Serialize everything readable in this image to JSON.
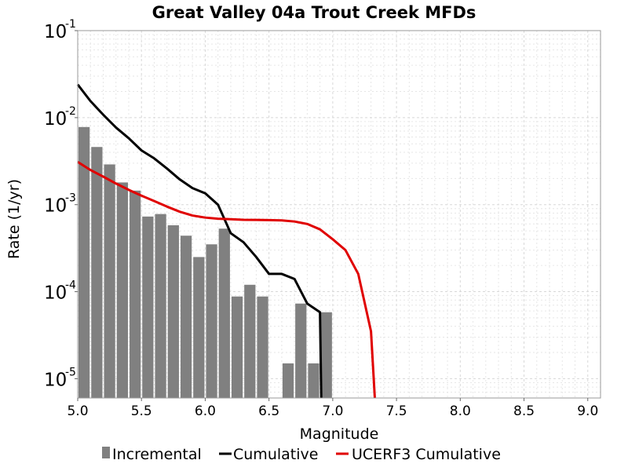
{
  "chart_data": {
    "type": "bar+line",
    "title": "Great Valley 04a Trout Creek MFDs",
    "xlabel": "Magnitude",
    "ylabel": "Rate (1/yr)",
    "xlim": [
      5.0,
      9.1
    ],
    "ylim": [
      6e-06,
      0.1
    ],
    "yscale": "log",
    "x_ticks": [
      "5.0",
      "5.5",
      "6.0",
      "6.5",
      "7.0",
      "7.5",
      "8.0",
      "8.5",
      "9.0"
    ],
    "y_ticks": [
      {
        "base": "10",
        "exp": "-5",
        "value": 1e-05
      },
      {
        "base": "10",
        "exp": "-4",
        "value": 0.0001
      },
      {
        "base": "10",
        "exp": "-3",
        "value": 0.001
      },
      {
        "base": "10",
        "exp": "-2",
        "value": 0.01
      },
      {
        "base": "10",
        "exp": "-1",
        "value": 0.1
      }
    ],
    "grid": true,
    "legend_position": "bottom",
    "series": [
      {
        "name": "Incremental",
        "kind": "bar",
        "color": "#808080",
        "bar_width": 0.1,
        "x": [
          5.05,
          5.15,
          5.25,
          5.35,
          5.45,
          5.55,
          5.65,
          5.75,
          5.85,
          5.95,
          6.05,
          6.15,
          6.25,
          6.35,
          6.45,
          6.55,
          6.65,
          6.75,
          6.85,
          6.95
        ],
        "y": [
          0.0078,
          0.0046,
          0.0029,
          0.0018,
          0.00145,
          0.00073,
          0.00078,
          0.00058,
          0.00044,
          0.00025,
          0.00035,
          0.00053,
          8.8e-05,
          0.00012,
          8.8e-05,
          0,
          1.5e-05,
          7.3e-05,
          1.5e-05,
          5.8e-05
        ]
      },
      {
        "name": "Cumulative",
        "kind": "line",
        "color": "#000000",
        "x": [
          5.0,
          5.1,
          5.2,
          5.3,
          5.4,
          5.5,
          5.6,
          5.7,
          5.8,
          5.9,
          6.0,
          6.1,
          6.2,
          6.3,
          6.4,
          6.5,
          6.6,
          6.7,
          6.8,
          6.9,
          6.91
        ],
        "y": [
          0.024,
          0.0155,
          0.0108,
          0.0077,
          0.0058,
          0.0042,
          0.0034,
          0.0026,
          0.00195,
          0.00155,
          0.00135,
          0.001,
          0.00047,
          0.00037,
          0.00025,
          0.00016,
          0.00016,
          0.00014,
          7.3e-05,
          5.8e-05,
          6e-06
        ]
      },
      {
        "name": "UCERF3 Cumulative",
        "kind": "line",
        "color": "#e00000",
        "x": [
          5.0,
          5.1,
          5.2,
          5.3,
          5.4,
          5.5,
          5.6,
          5.7,
          5.8,
          5.9,
          6.0,
          6.1,
          6.2,
          6.3,
          6.4,
          6.5,
          6.6,
          6.7,
          6.8,
          6.9,
          7.0,
          7.1,
          7.2,
          7.3,
          7.33
        ],
        "y": [
          0.0031,
          0.0025,
          0.0021,
          0.00175,
          0.00148,
          0.00127,
          0.0011,
          0.00095,
          0.00083,
          0.00075,
          0.00071,
          0.00069,
          0.00068,
          0.00067,
          0.000668,
          0.000665,
          0.00066,
          0.00064,
          0.0006,
          0.00052,
          0.0004,
          0.0003,
          0.00016,
          3.5e-05,
          6e-06
        ]
      }
    ]
  }
}
